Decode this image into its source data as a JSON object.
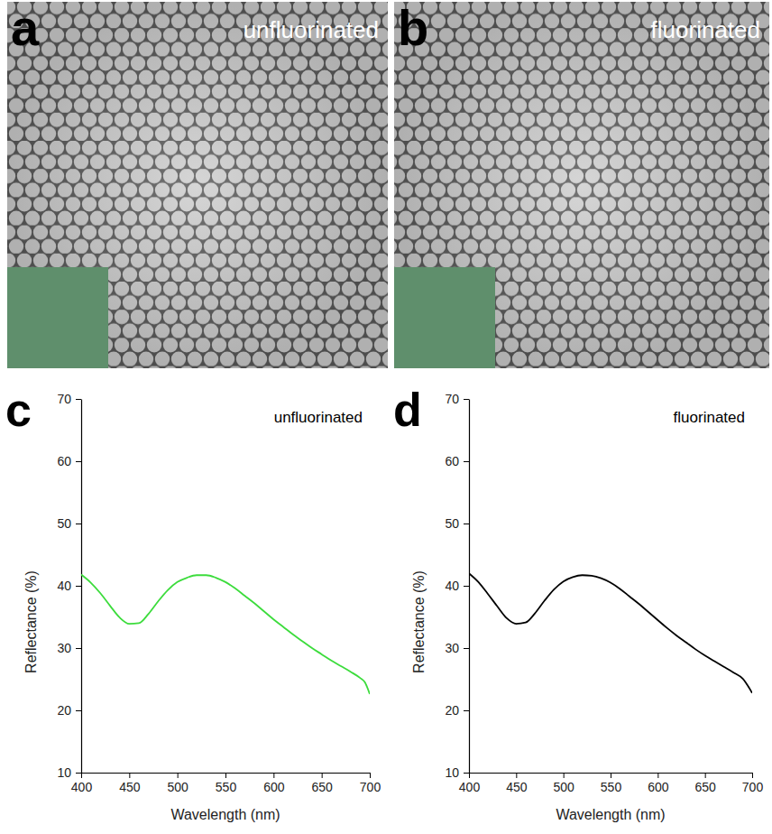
{
  "images": [
    {
      "letter": "a",
      "label": "unfluorinated"
    },
    {
      "letter": "b",
      "label": "fluorinated"
    }
  ],
  "chart_data": [
    {
      "type": "line",
      "panel_label": "c",
      "title": "unfluorinated",
      "x_label": "Wavelength (nm)",
      "y_label": "Reflectance (%)",
      "x": [
        400,
        410,
        420,
        430,
        440,
        450,
        460,
        470,
        480,
        490,
        500,
        510,
        520,
        530,
        540,
        550,
        560,
        570,
        580,
        590,
        600,
        610,
        620,
        630,
        640,
        650,
        660,
        670,
        680,
        690,
        695,
        700
      ],
      "values": [
        41.8,
        40.5,
        38.8,
        36.8,
        34.9,
        33.9,
        34.0,
        35.5,
        37.5,
        39.3,
        40.6,
        41.3,
        41.7,
        41.7,
        41.3,
        40.6,
        39.6,
        38.4,
        37.2,
        35.9,
        34.6,
        33.4,
        32.2,
        31.1,
        30.0,
        29.0,
        28.0,
        27.1,
        26.2,
        25.2,
        24.5,
        22.6
      ],
      "color": "#3cdc3c",
      "xlim": [
        400,
        700
      ],
      "xticks": [
        400,
        450,
        500,
        550,
        600,
        650,
        700
      ],
      "ylim": [
        10,
        70
      ],
      "yticks": [
        10,
        20,
        30,
        40,
        50,
        60,
        70
      ]
    },
    {
      "type": "line",
      "panel_label": "d",
      "title": "fluorinated",
      "x_label": "Wavelength (nm)",
      "y_label": "Reflectance (%)",
      "x": [
        400,
        410,
        420,
        430,
        440,
        450,
        460,
        470,
        480,
        490,
        500,
        510,
        520,
        530,
        540,
        550,
        560,
        570,
        580,
        590,
        600,
        610,
        620,
        630,
        640,
        650,
        660,
        670,
        680,
        690,
        700
      ],
      "values": [
        42.0,
        40.6,
        38.7,
        36.7,
        34.8,
        33.9,
        34.1,
        35.6,
        37.6,
        39.4,
        40.7,
        41.4,
        41.7,
        41.6,
        41.2,
        40.5,
        39.5,
        38.3,
        37.1,
        35.8,
        34.5,
        33.2,
        32.0,
        30.9,
        29.8,
        28.8,
        27.9,
        27.0,
        26.1,
        25.1,
        22.8
      ],
      "color": "#000000",
      "xlim": [
        400,
        700
      ],
      "xticks": [
        400,
        450,
        500,
        550,
        600,
        650,
        700
      ],
      "ylim": [
        10,
        70
      ],
      "yticks": [
        10,
        20,
        30,
        40,
        50,
        60,
        70
      ]
    }
  ]
}
